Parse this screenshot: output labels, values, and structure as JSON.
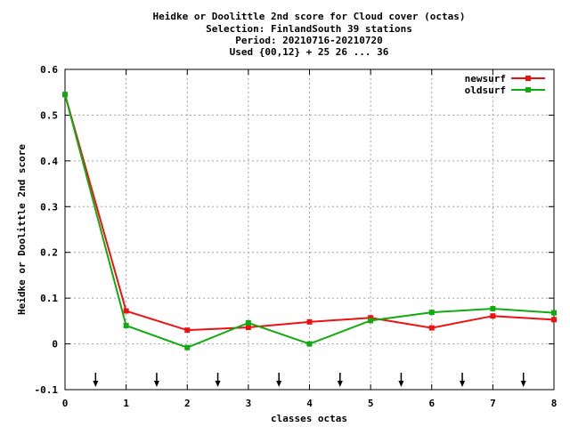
{
  "chart_data": {
    "type": "line",
    "title_lines": [
      "Heidke or Doolittle 2nd score  for Cloud cover (octas)",
      "Selection: FinlandSouth     39 stations",
      "Period: 20210716-20210720",
      "Used {00,12} + 25 26 ... 36"
    ],
    "xlabel": "classes octas",
    "ylabel": "Heidke or Doolittle 2nd score",
    "xlim": [
      0,
      8
    ],
    "ylim": [
      -0.1,
      0.6
    ],
    "x_ticks": [
      "0",
      "1",
      "2",
      "3",
      "4",
      "5",
      "6",
      "7",
      "8"
    ],
    "y_ticks": [
      "-0.1",
      "0",
      "0.1",
      "0.2",
      "0.3",
      "0.4",
      "0.5",
      "0.6"
    ],
    "grid": true,
    "legend_position": "top-right",
    "arrow_marks_x": [
      0.5,
      1.5,
      2.5,
      3.5,
      4.5,
      5.5,
      6.5,
      7.5
    ],
    "series": [
      {
        "name": "newsurf",
        "color": "#ee1111",
        "x": [
          0,
          1,
          2,
          3,
          4,
          5,
          6,
          7,
          8
        ],
        "values": [
          0.545,
          0.072,
          0.03,
          0.036,
          0.048,
          0.057,
          0.035,
          0.061,
          0.053
        ]
      },
      {
        "name": "oldsurf",
        "color": "#11aa11",
        "x": [
          0,
          1,
          2,
          3,
          4,
          5,
          6,
          7,
          8
        ],
        "values": [
          0.545,
          0.04,
          -0.008,
          0.046,
          0.0,
          0.051,
          0.069,
          0.077,
          0.068
        ]
      }
    ]
  }
}
